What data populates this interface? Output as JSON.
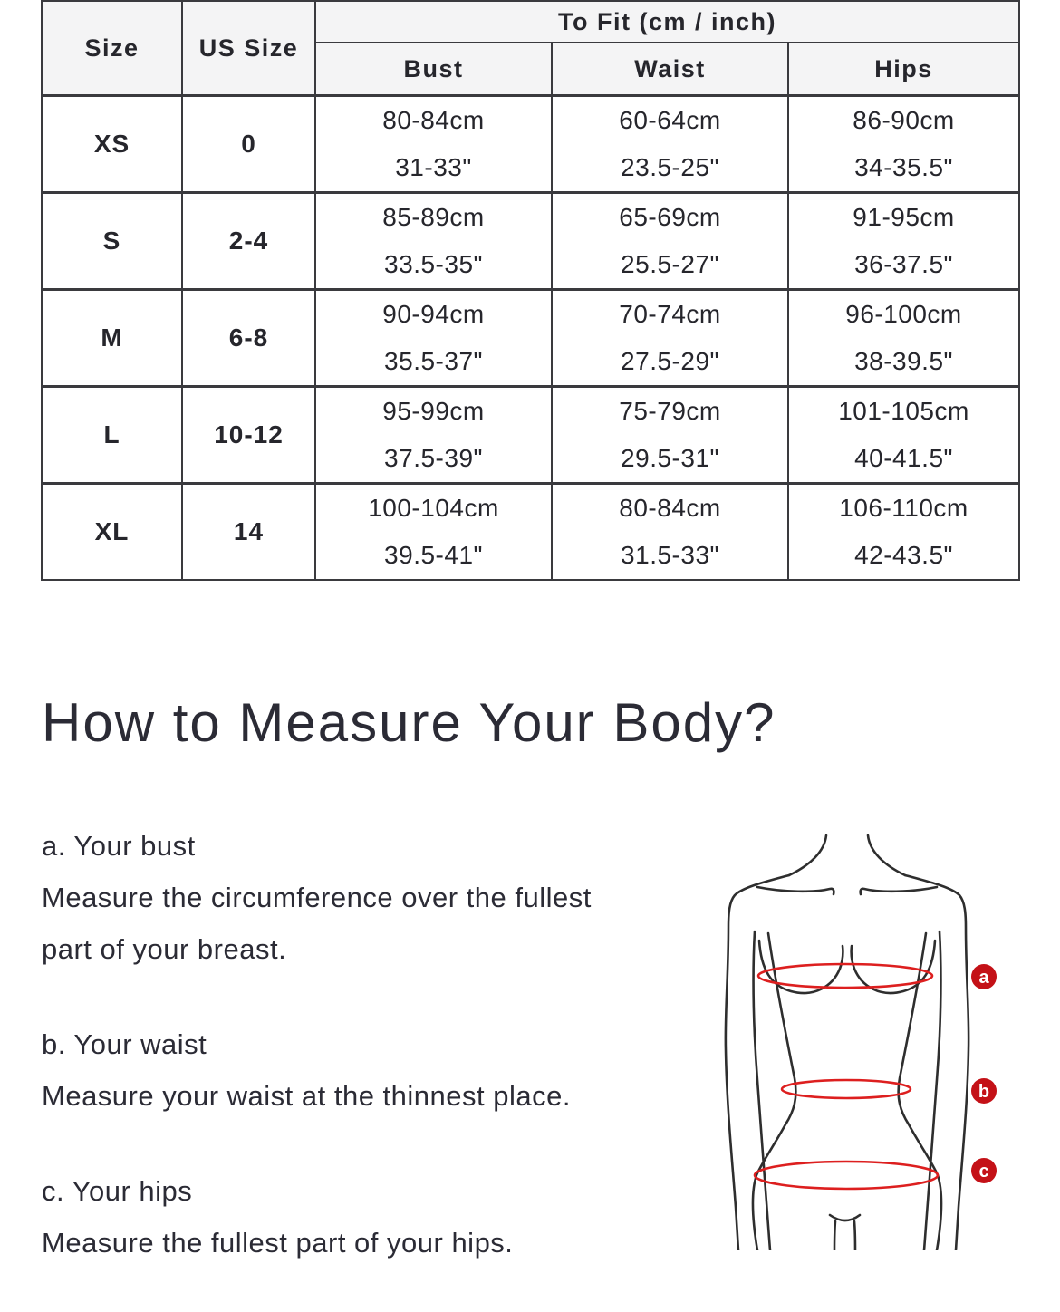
{
  "table": {
    "headers": {
      "size": "Size",
      "us_size": "US Size",
      "to_fit": "To Fit (cm / inch)",
      "bust": "Bust",
      "waist": "Waist",
      "hips": "Hips"
    },
    "rows": [
      {
        "size": "XS",
        "us": "0",
        "bust_cm": "80-84cm",
        "bust_in": "31-33\"",
        "waist_cm": "60-64cm",
        "waist_in": "23.5-25\"",
        "hips_cm": "86-90cm",
        "hips_in": "34-35.5\""
      },
      {
        "size": "S",
        "us": "2-4",
        "bust_cm": "85-89cm",
        "bust_in": "33.5-35\"",
        "waist_cm": "65-69cm",
        "waist_in": "25.5-27\"",
        "hips_cm": "91-95cm",
        "hips_in": "36-37.5\""
      },
      {
        "size": "M",
        "us": "6-8",
        "bust_cm": "90-94cm",
        "bust_in": "35.5-37\"",
        "waist_cm": "70-74cm",
        "waist_in": "27.5-29\"",
        "hips_cm": "96-100cm",
        "hips_in": "38-39.5\""
      },
      {
        "size": "L",
        "us": "10-12",
        "bust_cm": "95-99cm",
        "bust_in": "37.5-39\"",
        "waist_cm": "75-79cm",
        "waist_in": "29.5-31\"",
        "hips_cm": "101-105cm",
        "hips_in": "40-41.5\""
      },
      {
        "size": "XL",
        "us": "14",
        "bust_cm": "100-104cm",
        "bust_in": "39.5-41\"",
        "waist_cm": "80-84cm",
        "waist_in": "31.5-33\"",
        "hips_cm": "106-110cm",
        "hips_in": "42-43.5\""
      }
    ]
  },
  "section": {
    "heading": "How to Measure Your Body?",
    "steps": [
      {
        "title": "a. Your bust",
        "lines": [
          "Measure the circumference over the fullest",
          "part of your breast."
        ]
      },
      {
        "title": "b. Your waist",
        "lines": [
          "Measure your waist at the thinnest place."
        ]
      },
      {
        "title": "c. Your hips",
        "lines": [
          "Measure the fullest part of your hips."
        ]
      }
    ],
    "figure_labels": [
      "a",
      "b",
      "c"
    ],
    "accent_color": "#c41117",
    "line_color": "#2e2e2e"
  }
}
